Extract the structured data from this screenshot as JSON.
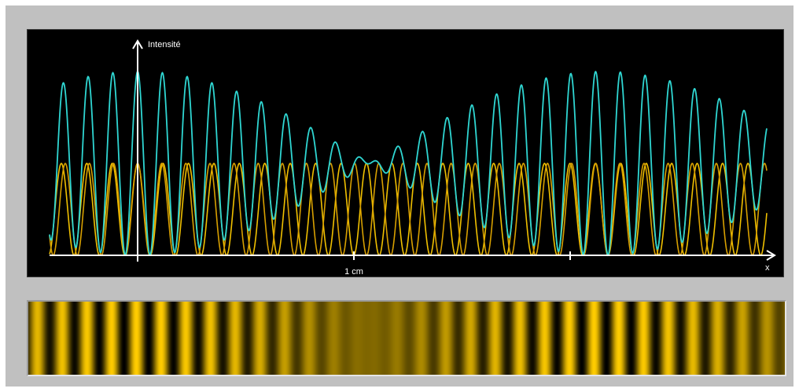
{
  "chart_data": {
    "type": "line",
    "title": "",
    "xlabel": "x",
    "ylabel": "Intensité",
    "x_ticks": [
      {
        "x": 0,
        "label": ""
      },
      {
        "x": 1,
        "label": "1 cm"
      },
      {
        "x": 2,
        "label": ""
      }
    ],
    "xlim": [
      -0.4,
      2.95
    ],
    "ylim": [
      0,
      2.05
    ],
    "grid": false,
    "legend": "none",
    "series": [
      {
        "name": "",
        "kind": "component",
        "fringe_spacing_cm": 0.1176,
        "phase_cm": 0.0,
        "amplitude": 1,
        "color": "#f0c000"
      },
      {
        "name": "",
        "kind": "component",
        "fringe_spacing_cm": 0.1115,
        "phase_cm": 0.0,
        "amplitude": 1,
        "color": "#d8a000"
      },
      {
        "name": "",
        "kind": "sum",
        "color": "#2fd6d2"
      }
    ],
    "fringe_strip": {
      "colormap": [
        "#000000",
        "#ffcc00"
      ],
      "x_range_cm": [
        -0.5,
        3.0
      ]
    }
  },
  "colors": {
    "background": "#c0c0c0",
    "plot_background": "#000000",
    "axis": "#ffffff",
    "sum_curve": "#2fd6d2",
    "component_a": "#f0c000",
    "component_b": "#d8a000"
  }
}
